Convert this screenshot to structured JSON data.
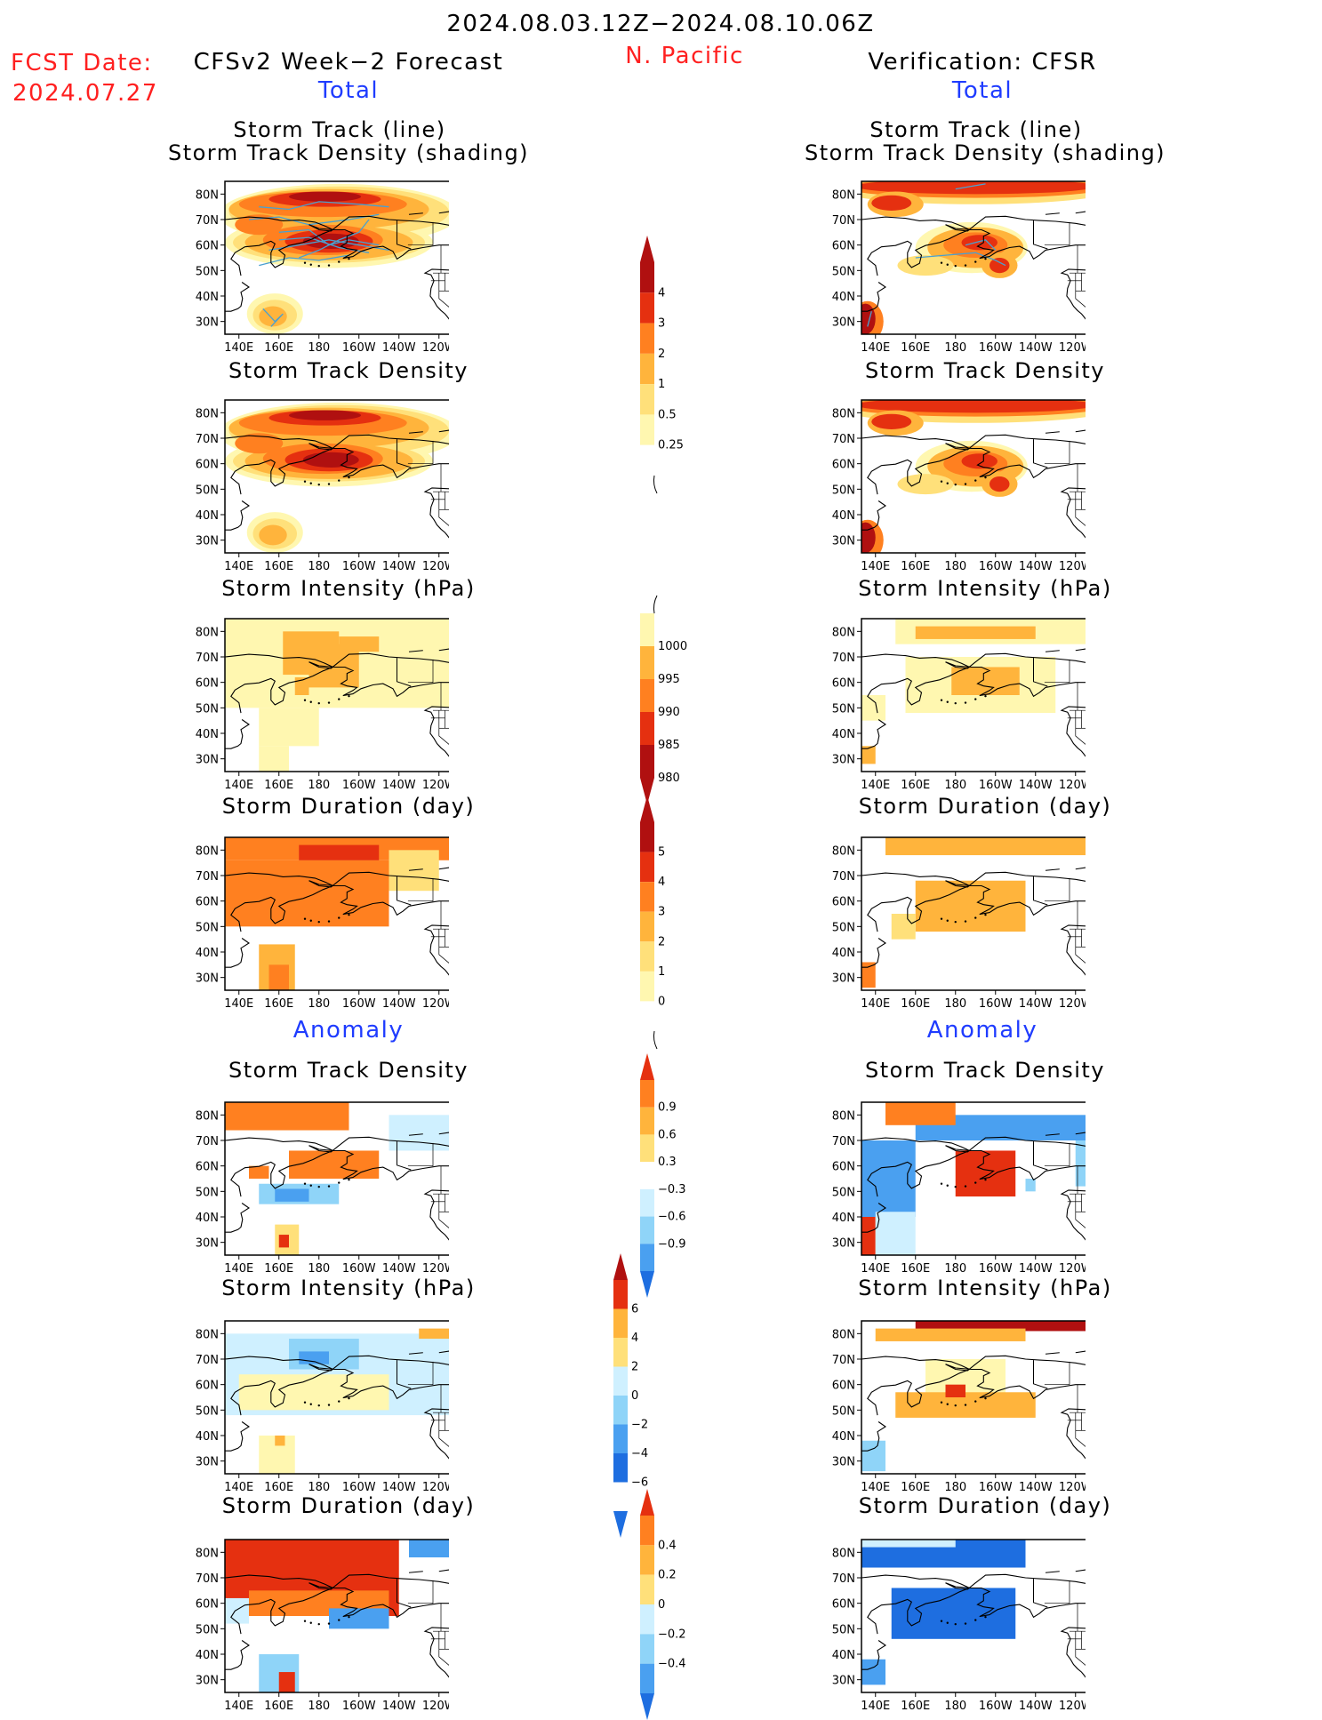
{
  "header": {
    "period": "2024.08.03.12Z−2024.08.10.06Z",
    "region": "N. Pacific",
    "fcst_label": "FCST Date:",
    "fcst_date": "2024.07.27",
    "left_title": "CFSv2 Week−2 Forecast",
    "right_title": "Verification: CFSR",
    "section_total": "Total",
    "section_anomaly": "Anomaly"
  },
  "panel_titles": {
    "track_line": "Storm Track (line)",
    "track_shading": "Storm Track Density (shading)",
    "density": "Storm Track Density",
    "intensity": "Storm Intensity (hPa)",
    "duration": "Storm Duration (day)"
  },
  "axes": {
    "lat_labels": [
      "80N",
      "70N",
      "60N",
      "50N",
      "40N",
      "30N"
    ],
    "lon_labels": [
      "140E",
      "160E",
      "180",
      "160W",
      "140W",
      "120W"
    ]
  },
  "colorbars": {
    "density_total": [
      "4",
      "3",
      "2",
      "1",
      "0.5",
      "0.25"
    ],
    "intensity_total": [
      "1000",
      "995",
      "990",
      "985",
      "980"
    ],
    "duration_total": [
      "5",
      "4",
      "3",
      "2",
      "1",
      "0"
    ],
    "density_anom": [
      "0.9",
      "0.6",
      "0.3",
      "−0.3",
      "−0.6",
      "−0.9"
    ],
    "intensity_anom": [
      "6",
      "4",
      "2",
      "0",
      "−2",
      "−4",
      "−6"
    ],
    "duration_anom": [
      "0.4",
      "0.2",
      "0",
      "−0.2",
      "−0.4"
    ]
  },
  "colors": {
    "warm": [
      "#fff7b0",
      "#ffe07a",
      "#ffb43c",
      "#ff8020",
      "#e53010",
      "#b01010"
    ],
    "cool": [
      "#cff0ff",
      "#8fd4f8",
      "#4aa0f0",
      "#1e6ee0"
    ],
    "track_line": "#4aa0d0"
  }
}
